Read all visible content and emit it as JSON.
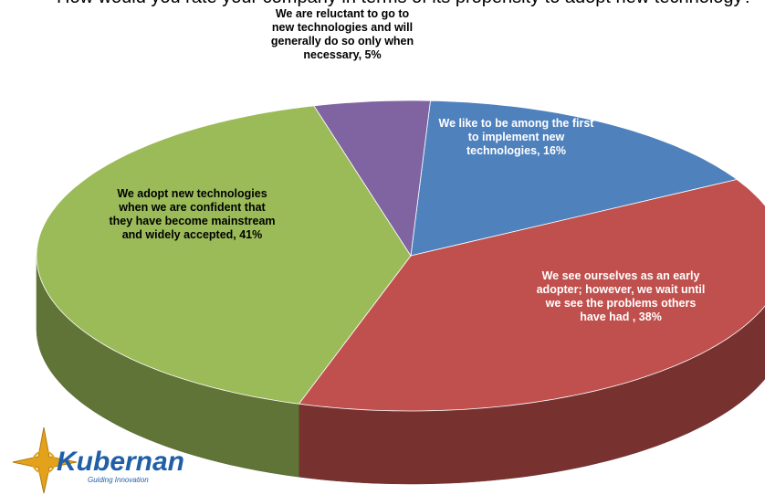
{
  "chart_data": {
    "type": "pie",
    "title": "How would you rate your company in terms of its propensity to adopt new technology?",
    "values": [
      16,
      38,
      41,
      5
    ],
    "value_labels": [
      "We like to be among the first to implement new technologies, 16%",
      "We see ourselves as an early adopter; however, we wait until we see the problems others have had , 38%",
      "We adopt new technologies when we are confident that they have become mainstream and widely accepted, 41%",
      "We are reluctant to go to new technologies and will generally do so only when necessary, 5%"
    ],
    "colors": [
      "#4f81bd",
      "#c0504d",
      "#9bbb59",
      "#8064a2"
    ]
  },
  "logo": {
    "name": "Kubernan",
    "tagline": "Guiding Innovation"
  }
}
